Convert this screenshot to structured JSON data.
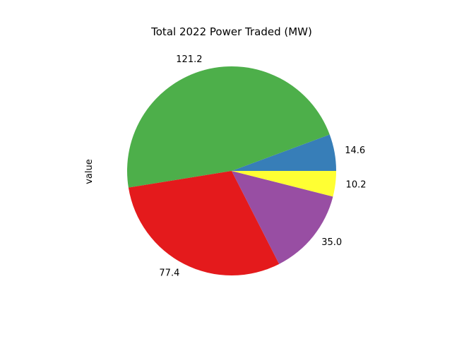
{
  "chart_data": {
    "type": "pie",
    "title": "Total 2022 Power Traded (MW)",
    "ylabel": "value",
    "slices": [
      {
        "value": 14.6,
        "label": "14.6",
        "color": "#377eb8"
      },
      {
        "value": 121.2,
        "label": "121.2",
        "color": "#4daf4a"
      },
      {
        "value": 77.4,
        "label": "77.4",
        "color": "#e41a1c"
      },
      {
        "value": 35.0,
        "label": "35.0",
        "color": "#984ea3"
      },
      {
        "value": 10.2,
        "label": "10.2",
        "color": "#ffff33"
      }
    ],
    "start_angle_deg": 0,
    "direction": "counterclockwise",
    "legend": "none"
  }
}
